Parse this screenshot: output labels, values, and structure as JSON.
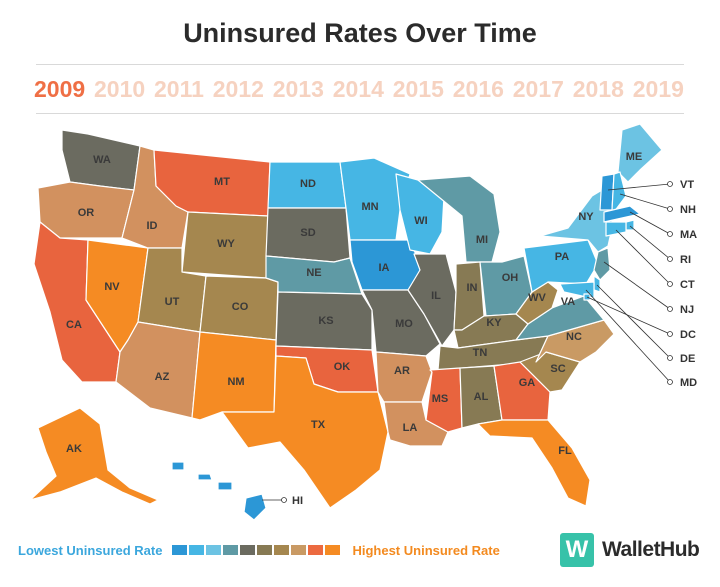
{
  "title": "Uninsured Rates Over Time",
  "years": [
    "2009",
    "2010",
    "2011",
    "2012",
    "2013",
    "2014",
    "2015",
    "2016",
    "2017",
    "2018",
    "2019"
  ],
  "selected_year": "2009",
  "legend": {
    "low_label": "Lowest Uninsured Rate",
    "high_label": "Highest Uninsured Rate",
    "colors": [
      "#2c97d6",
      "#46b6e4",
      "#6cc3e3",
      "#5f9aa5",
      "#6b6b60",
      "#877a54",
      "#a5874f",
      "#c99a64",
      "#ec6a40",
      "#f58b23"
    ]
  },
  "brand": {
    "logo_letter": "W",
    "name": "WalletHub"
  },
  "states": {
    "WA": {
      "label": "WA",
      "color": "#6b6b60"
    },
    "OR": {
      "label": "OR",
      "color": "#d2915f"
    },
    "CA": {
      "label": "CA",
      "color": "#e8643e"
    },
    "NV": {
      "label": "NV",
      "color": "#f58b23"
    },
    "ID": {
      "label": "ID",
      "color": "#d2915f"
    },
    "MT": {
      "label": "MT",
      "color": "#e8643e"
    },
    "WY": {
      "label": "WY",
      "color": "#a5874f"
    },
    "UT": {
      "label": "UT",
      "color": "#a5874f"
    },
    "AZ": {
      "label": "AZ",
      "color": "#d2915f"
    },
    "CO": {
      "label": "CO",
      "color": "#a5874f"
    },
    "NM": {
      "label": "NM",
      "color": "#f58b23"
    },
    "ND": {
      "label": "ND",
      "color": "#46b6e4"
    },
    "SD": {
      "label": "SD",
      "color": "#6b6b60"
    },
    "NE": {
      "label": "NE",
      "color": "#5f9aa5"
    },
    "KS": {
      "label": "KS",
      "color": "#6b6b60"
    },
    "OK": {
      "label": "OK",
      "color": "#e8643e"
    },
    "TX": {
      "label": "TX",
      "color": "#f58b23"
    },
    "MN": {
      "label": "MN",
      "color": "#46b6e4"
    },
    "IA": {
      "label": "IA",
      "color": "#2c97d6"
    },
    "MO": {
      "label": "MO",
      "color": "#6b6b60"
    },
    "AR": {
      "label": "AR",
      "color": "#d2915f"
    },
    "LA": {
      "label": "LA",
      "color": "#d2915f"
    },
    "WI": {
      "label": "WI",
      "color": "#46b6e4"
    },
    "IL": {
      "label": "IL",
      "color": "#6b6b60"
    },
    "MI": {
      "label": "MI",
      "color": "#5f9aa5"
    },
    "IN": {
      "label": "IN",
      "color": "#877a54"
    },
    "OH": {
      "label": "OH",
      "color": "#5f9aa5"
    },
    "KY": {
      "label": "KY",
      "color": "#877a54"
    },
    "TN": {
      "label": "TN",
      "color": "#877a54"
    },
    "MS": {
      "label": "MS",
      "color": "#e8643e"
    },
    "AL": {
      "label": "AL",
      "color": "#877a54"
    },
    "GA": {
      "label": "GA",
      "color": "#e8643e"
    },
    "FL": {
      "label": "FL",
      "color": "#f58b23"
    },
    "SC": {
      "label": "SC",
      "color": "#a5874f"
    },
    "NC": {
      "label": "NC",
      "color": "#c99a64"
    },
    "VA": {
      "label": "VA",
      "color": "#5f9aa5"
    },
    "WV": {
      "label": "WV",
      "color": "#a5874f"
    },
    "PA": {
      "label": "PA",
      "color": "#46b6e4"
    },
    "NY": {
      "label": "NY",
      "color": "#6cc3e3"
    },
    "ME": {
      "label": "ME",
      "color": "#6cc3e3"
    },
    "AK": {
      "label": "AK",
      "color": "#f58b23"
    },
    "HI": {
      "label": "HI",
      "color": "#2c97d6"
    },
    "VT": {
      "label": "VT",
      "color": "#2c97d6"
    },
    "NH": {
      "label": "NH",
      "color": "#46b6e4"
    },
    "MA": {
      "label": "MA",
      "color": "#2c97d6"
    },
    "RI": {
      "label": "RI",
      "color": "#46b6e4"
    },
    "CT": {
      "label": "CT",
      "color": "#46b6e4"
    },
    "NJ": {
      "label": "NJ",
      "color": "#5f9aa5"
    },
    "DC": {
      "label": "DC",
      "color": "#46b6e4"
    },
    "DE": {
      "label": "DE",
      "color": "#46b6e4"
    },
    "MD": {
      "label": "MD",
      "color": "#46b6e4"
    }
  }
}
